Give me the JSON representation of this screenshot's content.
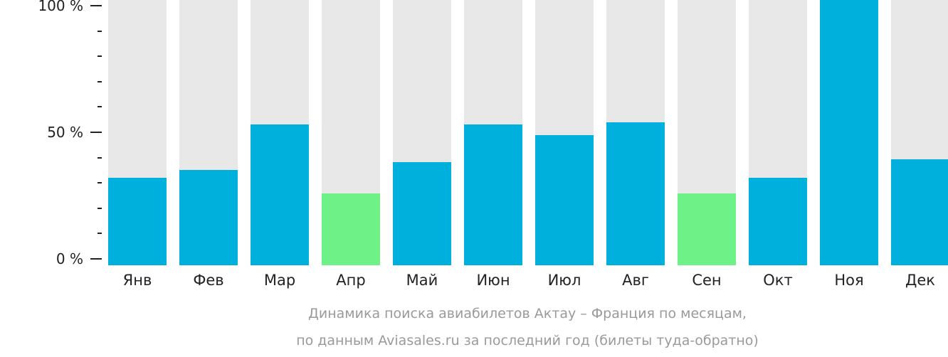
{
  "chart_data": {
    "type": "bar",
    "title": "Динамика поиска авиабилетов Актау – Франция по месяцам,",
    "subtitle": "по данным Aviasales.ru за последний год (билеты туда-обратно)",
    "xlabel": "",
    "ylabel": "",
    "ylim": [
      0,
      100
    ],
    "y_ticks": [
      "0 %",
      "50 %",
      "100 %"
    ],
    "grid": false,
    "categories": [
      "Янв",
      "Фев",
      "Мар",
      "Апр",
      "Май",
      "Июн",
      "Июл",
      "Авг",
      "Сен",
      "Окт",
      "Ноя",
      "Дек"
    ],
    "values": [
      33,
      36,
      53,
      27,
      39,
      53,
      49,
      54,
      27,
      33,
      100,
      40
    ],
    "bar_colors": [
      "#00b0dc",
      "#00b0dc",
      "#00b0dc",
      "#6ef288",
      "#00b0dc",
      "#00b0dc",
      "#00b0dc",
      "#00b0dc",
      "#6ef288",
      "#00b0dc",
      "#00b0dc",
      "#00b0dc"
    ],
    "background_bar_color": "#e8e8e8",
    "highlight": "lowest months shown in green"
  },
  "colors": {
    "primary": "#00b0dc",
    "low": "#6ef288",
    "track": "#e8e8e8",
    "caption": "#9a9a9a"
  }
}
